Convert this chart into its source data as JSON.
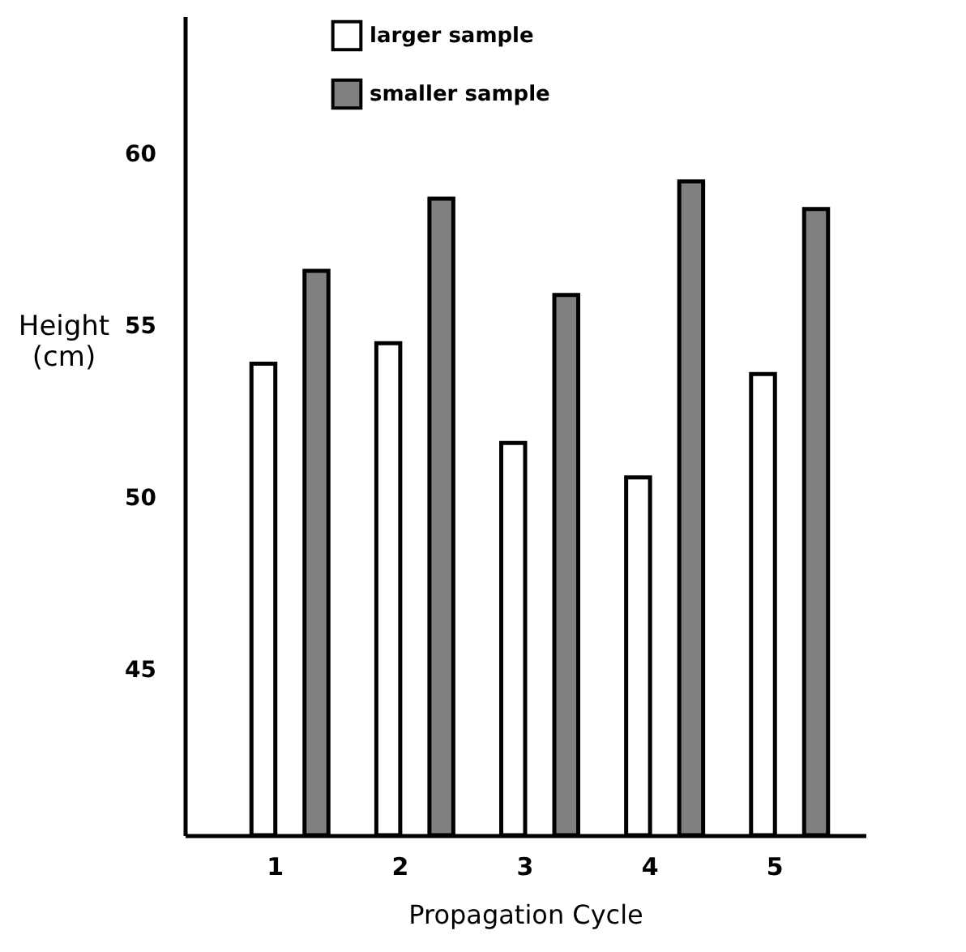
{
  "chart_data": {
    "type": "bar",
    "xlabel": "Propagation Cycle",
    "ylabel": "Height (cm)",
    "categories": [
      "1",
      "2",
      "3",
      "4",
      "5"
    ],
    "series": [
      {
        "name": "larger sample",
        "color": "#ffffff",
        "values": [
          53.9,
          54.5,
          51.6,
          50.6,
          53.6
        ]
      },
      {
        "name": "smaller sample",
        "color": "#808080",
        "values": [
          56.6,
          58.7,
          55.9,
          59.2,
          58.4
        ]
      }
    ],
    "ylim": [
      40.2,
      64
    ],
    "yticks": [
      45,
      50,
      55,
      60
    ],
    "grid": false,
    "legend": "top left"
  }
}
